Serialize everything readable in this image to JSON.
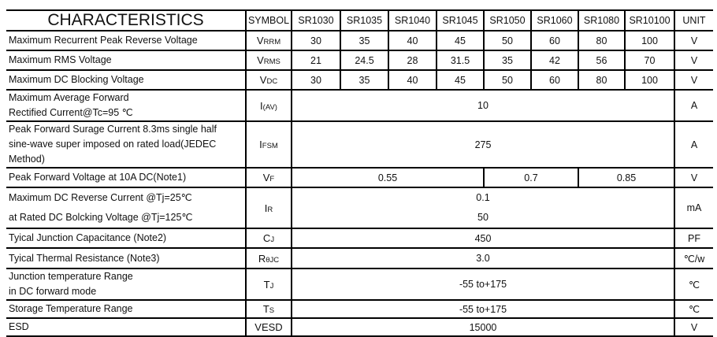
{
  "header": {
    "title": "CHARACTERISTICS",
    "symbol": "SYMBOL",
    "models": [
      "SR1030",
      "SR1035",
      "SR1040",
      "SR1045",
      "SR1050",
      "SR1060",
      "SR1080",
      "SR10100"
    ],
    "unit": "UNIT"
  },
  "rows": [
    {
      "label": "Maximum Recurrent Peak Reverse Voltage",
      "sym": [
        "V",
        "RRM"
      ],
      "values": [
        "30",
        "35",
        "40",
        "45",
        "50",
        "60",
        "80",
        "100"
      ],
      "unit": "V"
    },
    {
      "label": "Maximum RMS Voltage",
      "sym": [
        "V",
        "RMS"
      ],
      "values": [
        "21",
        "24.5",
        "28",
        "31.5",
        "35",
        "42",
        "56",
        "70"
      ],
      "unit": "V"
    },
    {
      "label": "Maximum DC Blocking Voltage",
      "sym": [
        "V",
        "DC"
      ],
      "values": [
        "30",
        "35",
        "40",
        "45",
        "50",
        "60",
        "80",
        "100"
      ],
      "unit": "V"
    },
    {
      "label": [
        "Maximum Average Forward",
        "Rectified Current@Tc=95 ℃"
      ],
      "sym": [
        "I",
        "(AV)"
      ],
      "value": "10",
      "unit": "A"
    },
    {
      "label": [
        "Peak Forward Surage Current 8.3ms single half",
        "sine-wave super imposed on rated load(JEDEC",
        "Method)"
      ],
      "sym": [
        "I",
        "FSM"
      ],
      "value": "275",
      "unit": "A"
    },
    {
      "label": "Peak Forward Voltage at 10A DC(Note1)",
      "sym": [
        "V",
        "F"
      ],
      "values": [
        "0.55",
        "0.7",
        "0.85"
      ],
      "unit": "V"
    },
    {
      "label": [
        "Maximum DC Reverse Current  @Tj=25℃",
        "at Rated DC Bolcking Voltage  @Tj=125℃"
      ],
      "sym": [
        "I",
        "R"
      ],
      "values": [
        "0.1",
        "50"
      ],
      "unit": "mA"
    },
    {
      "label": "Tyical Junction  Capacitance (Note2)",
      "sym": [
        "C",
        "J"
      ],
      "value": "450",
      "unit": "PF"
    },
    {
      "label": "Tyical Thermal Resistance (Note3)",
      "sym": [
        "R",
        "θJC"
      ],
      "value": "3.0",
      "unit": "℃/w"
    },
    {
      "label": [
        "Junction temperature Range",
        "in DC forward mode"
      ],
      "sym": [
        "T",
        "J"
      ],
      "value": "-55 to+175",
      "unit": "℃"
    },
    {
      "label": "Storage Temperature Range",
      "sym": [
        "T",
        "S"
      ],
      "value": "-55 to+175",
      "unit": "℃"
    },
    {
      "label": "ESD",
      "sym": [
        "VESD",
        ""
      ],
      "value": "15000",
      "unit": "V"
    }
  ]
}
